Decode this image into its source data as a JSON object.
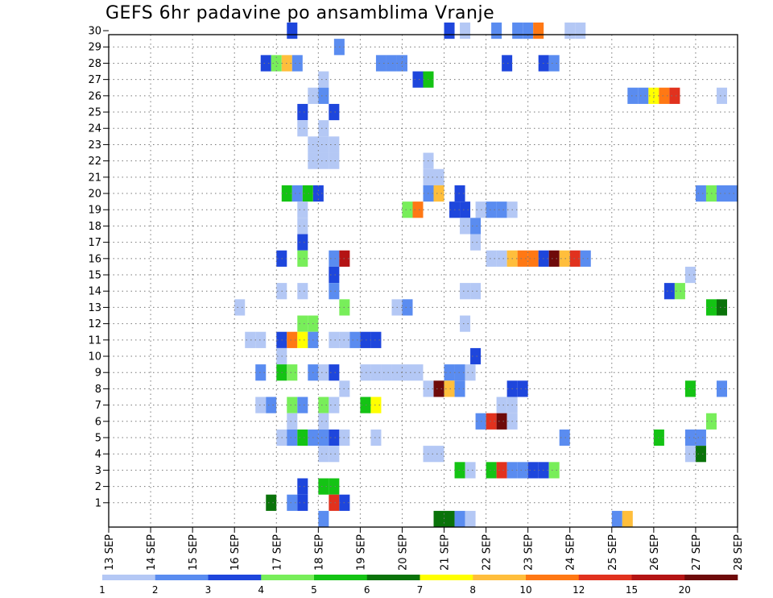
{
  "chart_data": {
    "type": "heatmap",
    "title": "GEFS 6hr padavine po ansamblima Vranje",
    "x_tick_labels": [
      "13 SEP",
      "14 SEP",
      "15 SEP",
      "16 SEP",
      "17 SEP",
      "18 SEP",
      "19 SEP",
      "20 SEP",
      "21 SEP",
      "22 SEP",
      "23 SEP",
      "24 SEP",
      "25 SEP",
      "26 SEP",
      "27 SEP",
      "28 SEP"
    ],
    "y_tick_labels": [
      "1",
      "2",
      "3",
      "4",
      "5",
      "6",
      "7",
      "8",
      "9",
      "10",
      "11",
      "12",
      "13",
      "14",
      "15",
      "16",
      "17",
      "18",
      "19",
      "20",
      "21",
      "22",
      "23",
      "24",
      "25",
      "26",
      "27",
      "28",
      "29",
      "30"
    ],
    "x_range_days": [
      0,
      15
    ],
    "y_range": [
      0,
      30
    ],
    "grid": true,
    "legend_placement": "bottom",
    "colorbar": {
      "labels": [
        "1",
        "2",
        "3",
        "4",
        "5",
        "6",
        "7",
        "8",
        "10",
        "12",
        "15",
        "20"
      ],
      "colors": [
        "#b4c8f5",
        "#5a8cf0",
        "#1e46dc",
        "#78ee5a",
        "#14c314",
        "#0a730a",
        "#ffff00",
        "#ffbe3c",
        "#ff7814",
        "#e1321e",
        "#b41414",
        "#6e0a0a"
      ]
    },
    "cells": [
      {
        "m": 30,
        "d": 4.375,
        "c": 3
      },
      {
        "m": 30,
        "d": 8.125,
        "c": 3
      },
      {
        "m": 30,
        "d": 8.5,
        "c": 1
      },
      {
        "m": 30,
        "d": 9.25,
        "c": 2
      },
      {
        "m": 30,
        "d": 9.75,
        "c": 2
      },
      {
        "m": 30,
        "d": 10,
        "c": 2
      },
      {
        "m": 30,
        "d": 10.25,
        "c": 9
      },
      {
        "m": 30,
        "d": 11,
        "c": 1
      },
      {
        "m": 30,
        "d": 11.25,
        "c": 1
      },
      {
        "m": 29,
        "d": 5.5,
        "c": 2
      },
      {
        "m": 28,
        "d": 3.75,
        "c": 3
      },
      {
        "m": 28,
        "d": 4,
        "c": 4
      },
      {
        "m": 28,
        "d": 4.25,
        "c": 8
      },
      {
        "m": 28,
        "d": 4.5,
        "c": 2
      },
      {
        "m": 28,
        "d": 6.5,
        "c": 2
      },
      {
        "m": 28,
        "d": 6.75,
        "c": 2
      },
      {
        "m": 28,
        "d": 7,
        "c": 2
      },
      {
        "m": 28,
        "d": 9.5,
        "c": 3
      },
      {
        "m": 28,
        "d": 10.375,
        "c": 3
      },
      {
        "m": 28,
        "d": 10.625,
        "c": 2
      },
      {
        "m": 27,
        "d": 5.125,
        "c": 1
      },
      {
        "m": 27,
        "d": 7.375,
        "c": 3
      },
      {
        "m": 27,
        "d": 7.625,
        "c": 5
      },
      {
        "m": 26,
        "d": 4.875,
        "c": 1
      },
      {
        "m": 26,
        "d": 5.125,
        "c": 2
      },
      {
        "m": 26,
        "d": 12.5,
        "c": 2
      },
      {
        "m": 26,
        "d": 12.75,
        "c": 2
      },
      {
        "m": 26,
        "d": 13,
        "c": 7
      },
      {
        "m": 26,
        "d": 13.25,
        "c": 9
      },
      {
        "m": 26,
        "d": 13.5,
        "c": 10
      },
      {
        "m": 26,
        "d": 14.625,
        "c": 1
      },
      {
        "m": 25,
        "d": 4.625,
        "c": 3
      },
      {
        "m": 25,
        "d": 5.375,
        "c": 3
      },
      {
        "m": 24,
        "d": 4.625,
        "c": 1
      },
      {
        "m": 24,
        "d": 5.125,
        "c": 1
      },
      {
        "m": 23,
        "d": 4.875,
        "c": 1
      },
      {
        "m": 23,
        "d": 5.125,
        "c": 1
      },
      {
        "m": 23,
        "d": 5.375,
        "c": 1
      },
      {
        "m": 22,
        "d": 4.875,
        "c": 1
      },
      {
        "m": 22,
        "d": 5.125,
        "c": 1
      },
      {
        "m": 22,
        "d": 5.375,
        "c": 1
      },
      {
        "m": 22,
        "d": 7.625,
        "c": 1
      },
      {
        "m": 21,
        "d": 7.625,
        "c": 1
      },
      {
        "m": 21,
        "d": 7.875,
        "c": 1
      },
      {
        "m": 20,
        "d": 4.25,
        "c": 5
      },
      {
        "m": 20,
        "d": 4.5,
        "c": 2
      },
      {
        "m": 20,
        "d": 4.75,
        "c": 5
      },
      {
        "m": 20,
        "d": 5,
        "c": 3
      },
      {
        "m": 20,
        "d": 7.625,
        "c": 2
      },
      {
        "m": 20,
        "d": 7.875,
        "c": 8
      },
      {
        "m": 20,
        "d": 8.375,
        "c": 3
      },
      {
        "m": 20,
        "d": 14.125,
        "c": 2
      },
      {
        "m": 20,
        "d": 14.375,
        "c": 4
      },
      {
        "m": 20,
        "d": 14.625,
        "c": 2
      },
      {
        "m": 20,
        "d": 14.875,
        "c": 2
      },
      {
        "m": 19,
        "d": 4.625,
        "c": 1
      },
      {
        "m": 19,
        "d": 7.125,
        "c": 4
      },
      {
        "m": 19,
        "d": 7.375,
        "c": 9
      },
      {
        "m": 19,
        "d": 8.25,
        "c": 3
      },
      {
        "m": 19,
        "d": 8.5,
        "c": 3
      },
      {
        "m": 19,
        "d": 8.875,
        "c": 1
      },
      {
        "m": 19,
        "d": 9.125,
        "c": 2
      },
      {
        "m": 19,
        "d": 9.375,
        "c": 2
      },
      {
        "m": 19,
        "d": 9.625,
        "c": 1
      },
      {
        "m": 18,
        "d": 4.625,
        "c": 1
      },
      {
        "m": 18,
        "d": 8.5,
        "c": 1
      },
      {
        "m": 18,
        "d": 8.75,
        "c": 2
      },
      {
        "m": 17,
        "d": 4.625,
        "c": 3
      },
      {
        "m": 17,
        "d": 8.75,
        "c": 1
      },
      {
        "m": 16,
        "d": 4.125,
        "c": 3
      },
      {
        "m": 16,
        "d": 4.625,
        "c": 4
      },
      {
        "m": 16,
        "d": 5.375,
        "c": 2
      },
      {
        "m": 16,
        "d": 5.625,
        "c": 11
      },
      {
        "m": 16,
        "d": 9.125,
        "c": 1
      },
      {
        "m": 16,
        "d": 9.375,
        "c": 1
      },
      {
        "m": 16,
        "d": 9.625,
        "c": 8
      },
      {
        "m": 16,
        "d": 9.875,
        "c": 9
      },
      {
        "m": 16,
        "d": 10.125,
        "c": 9
      },
      {
        "m": 16,
        "d": 10.375,
        "c": 3
      },
      {
        "m": 16,
        "d": 10.625,
        "c": 12
      },
      {
        "m": 16,
        "d": 10.875,
        "c": 8
      },
      {
        "m": 16,
        "d": 11.125,
        "c": 10
      },
      {
        "m": 16,
        "d": 11.375,
        "c": 2
      },
      {
        "m": 15,
        "d": 5.375,
        "c": 3
      },
      {
        "m": 15,
        "d": 13.875,
        "c": 1
      },
      {
        "m": 14,
        "d": 4.125,
        "c": 1
      },
      {
        "m": 14,
        "d": 4.625,
        "c": 1
      },
      {
        "m": 14,
        "d": 5.375,
        "c": 2
      },
      {
        "m": 14,
        "d": 8.5,
        "c": 1
      },
      {
        "m": 14,
        "d": 8.75,
        "c": 1
      },
      {
        "m": 14,
        "d": 13.375,
        "c": 3
      },
      {
        "m": 14,
        "d": 13.625,
        "c": 4
      },
      {
        "m": 13,
        "d": 3.125,
        "c": 1
      },
      {
        "m": 13,
        "d": 5.625,
        "c": 4
      },
      {
        "m": 13,
        "d": 6.875,
        "c": 1
      },
      {
        "m": 13,
        "d": 7.125,
        "c": 2
      },
      {
        "m": 13,
        "d": 14.375,
        "c": 5
      },
      {
        "m": 13,
        "d": 14.625,
        "c": 6
      },
      {
        "m": 12,
        "d": 4.625,
        "c": 4
      },
      {
        "m": 12,
        "d": 4.875,
        "c": 4
      },
      {
        "m": 12,
        "d": 8.5,
        "c": 1
      },
      {
        "m": 11,
        "d": 3.375,
        "c": 1
      },
      {
        "m": 11,
        "d": 3.625,
        "c": 1
      },
      {
        "m": 11,
        "d": 4.125,
        "c": 3
      },
      {
        "m": 11,
        "d": 4.375,
        "c": 9
      },
      {
        "m": 11,
        "d": 4.625,
        "c": 7
      },
      {
        "m": 11,
        "d": 4.875,
        "c": 2
      },
      {
        "m": 11,
        "d": 5.375,
        "c": 1
      },
      {
        "m": 11,
        "d": 5.625,
        "c": 1
      },
      {
        "m": 11,
        "d": 5.875,
        "c": 2
      },
      {
        "m": 11,
        "d": 6.125,
        "c": 3
      },
      {
        "m": 11,
        "d": 6.375,
        "c": 3
      },
      {
        "m": 10,
        "d": 4.125,
        "c": 1
      },
      {
        "m": 10,
        "d": 8.75,
        "c": 3
      },
      {
        "m": 9,
        "d": 3.625,
        "c": 2
      },
      {
        "m": 9,
        "d": 4.125,
        "c": 5
      },
      {
        "m": 9,
        "d": 4.375,
        "c": 4
      },
      {
        "m": 9,
        "d": 4.875,
        "c": 2
      },
      {
        "m": 9,
        "d": 5.125,
        "c": 1
      },
      {
        "m": 9,
        "d": 5.375,
        "c": 3
      },
      {
        "m": 9,
        "d": 6.125,
        "c": 1
      },
      {
        "m": 9,
        "d": 6.375,
        "c": 1
      },
      {
        "m": 9,
        "d": 6.625,
        "c": 1
      },
      {
        "m": 9,
        "d": 6.875,
        "c": 1
      },
      {
        "m": 9,
        "d": 7.125,
        "c": 1
      },
      {
        "m": 9,
        "d": 7.375,
        "c": 1
      },
      {
        "m": 9,
        "d": 8.125,
        "c": 2
      },
      {
        "m": 9,
        "d": 8.375,
        "c": 2
      },
      {
        "m": 9,
        "d": 8.625,
        "c": 1
      },
      {
        "m": 8,
        "d": 5.625,
        "c": 1
      },
      {
        "m": 8,
        "d": 7.625,
        "c": 1
      },
      {
        "m": 8,
        "d": 7.875,
        "c": 12
      },
      {
        "m": 8,
        "d": 8.125,
        "c": 8
      },
      {
        "m": 8,
        "d": 8.375,
        "c": 2
      },
      {
        "m": 8,
        "d": 9.625,
        "c": 3
      },
      {
        "m": 8,
        "d": 9.875,
        "c": 3
      },
      {
        "m": 8,
        "d": 13.875,
        "c": 5
      },
      {
        "m": 8,
        "d": 14.625,
        "c": 2
      },
      {
        "m": 7,
        "d": 3.625,
        "c": 1
      },
      {
        "m": 7,
        "d": 3.875,
        "c": 2
      },
      {
        "m": 7,
        "d": 4.375,
        "c": 4
      },
      {
        "m": 7,
        "d": 4.625,
        "c": 2
      },
      {
        "m": 7,
        "d": 5.125,
        "c": 4
      },
      {
        "m": 7,
        "d": 5.375,
        "c": 1
      },
      {
        "m": 7,
        "d": 6.125,
        "c": 5
      },
      {
        "m": 7,
        "d": 6.375,
        "c": 7
      },
      {
        "m": 7,
        "d": 9.375,
        "c": 1
      },
      {
        "m": 7,
        "d": 9.625,
        "c": 1
      },
      {
        "m": 6,
        "d": 4.375,
        "c": 1
      },
      {
        "m": 6,
        "d": 5.125,
        "c": 1
      },
      {
        "m": 6,
        "d": 8.875,
        "c": 2
      },
      {
        "m": 6,
        "d": 9.125,
        "c": 10
      },
      {
        "m": 6,
        "d": 9.375,
        "c": 12
      },
      {
        "m": 6,
        "d": 9.625,
        "c": 1
      },
      {
        "m": 6,
        "d": 14.375,
        "c": 4
      },
      {
        "m": 5,
        "d": 4.125,
        "c": 1
      },
      {
        "m": 5,
        "d": 4.375,
        "c": 2
      },
      {
        "m": 5,
        "d": 4.625,
        "c": 5
      },
      {
        "m": 5,
        "d": 4.875,
        "c": 2
      },
      {
        "m": 5,
        "d": 5.125,
        "c": 2
      },
      {
        "m": 5,
        "d": 5.375,
        "c": 3
      },
      {
        "m": 5,
        "d": 5.625,
        "c": 1
      },
      {
        "m": 5,
        "d": 6.375,
        "c": 1
      },
      {
        "m": 5,
        "d": 10.875,
        "c": 2
      },
      {
        "m": 5,
        "d": 13.125,
        "c": 5
      },
      {
        "m": 5,
        "d": 13.875,
        "c": 2
      },
      {
        "m": 5,
        "d": 14.125,
        "c": 2
      },
      {
        "m": 4,
        "d": 5.125,
        "c": 1
      },
      {
        "m": 4,
        "d": 5.375,
        "c": 1
      },
      {
        "m": 4,
        "d": 7.625,
        "c": 1
      },
      {
        "m": 4,
        "d": 7.875,
        "c": 1
      },
      {
        "m": 4,
        "d": 13.875,
        "c": 1
      },
      {
        "m": 4,
        "d": 14.125,
        "c": 6
      },
      {
        "m": 3,
        "d": 8.375,
        "c": 5
      },
      {
        "m": 3,
        "d": 8.625,
        "c": 1
      },
      {
        "m": 3,
        "d": 9.125,
        "c": 5
      },
      {
        "m": 3,
        "d": 9.375,
        "c": 10
      },
      {
        "m": 3,
        "d": 9.625,
        "c": 2
      },
      {
        "m": 3,
        "d": 9.875,
        "c": 2
      },
      {
        "m": 3,
        "d": 10.125,
        "c": 3
      },
      {
        "m": 3,
        "d": 10.375,
        "c": 3
      },
      {
        "m": 3,
        "d": 10.625,
        "c": 4
      },
      {
        "m": 2,
        "d": 4.625,
        "c": 3
      },
      {
        "m": 2,
        "d": 5.125,
        "c": 5
      },
      {
        "m": 2,
        "d": 5.375,
        "c": 5
      },
      {
        "m": 1,
        "d": 3.875,
        "c": 6
      },
      {
        "m": 1,
        "d": 4.375,
        "c": 2
      },
      {
        "m": 1,
        "d": 4.625,
        "c": 3
      },
      {
        "m": 1,
        "d": 5.375,
        "c": 10
      },
      {
        "m": 1,
        "d": 5.625,
        "c": 3
      },
      {
        "m": 0,
        "d": 5.125,
        "c": 2
      },
      {
        "m": 0,
        "d": 7.875,
        "c": 6
      },
      {
        "m": 0,
        "d": 8.125,
        "c": 6
      },
      {
        "m": 0,
        "d": 8.375,
        "c": 2
      },
      {
        "m": 0,
        "d": 8.625,
        "c": 1
      },
      {
        "m": 0,
        "d": 12.125,
        "c": 2
      },
      {
        "m": 0,
        "d": 12.375,
        "c": 8
      }
    ]
  }
}
